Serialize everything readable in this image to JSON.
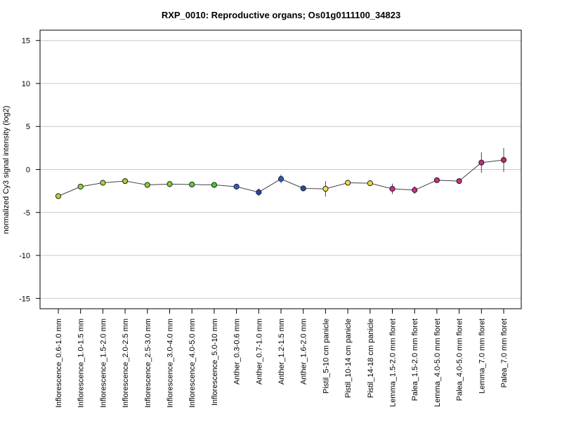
{
  "chart_data": {
    "type": "line",
    "title": "RXP_0010: Reproductive organs; Os01g0111100_34823",
    "xlabel": "",
    "ylabel": "normalized Cy3 signal intensity (log2)",
    "ylim": [
      -16.2,
      16.2
    ],
    "yticks": [
      -15,
      -10,
      -5,
      0,
      5,
      10,
      15
    ],
    "ytick_labels": [
      "-15",
      "-10",
      "-5",
      "0",
      "5",
      "10",
      "15"
    ],
    "grid": true,
    "categories": [
      "Inflorescence_0.6-1.0 mm",
      "Inflorescence_1.0-1.5 mm",
      "Inflorescence_1.5-2.0 mm",
      "Inflorescence_2.0-2.5 mm",
      "Inflorescence_2.5-3.0 mm",
      "Inflorescence_3.0-4.0 mm",
      "Inflorescence_4.0-5.0 mm",
      "Inflorescence_5.0-10 mm",
      "Anther_0.3-0.6 mm",
      "Anther_0.7-1.0 mm",
      "Anther_1.2-1.5 mm",
      "Anther_1.6-2.0 mm",
      "Pistil_5-10 cm panicle",
      "Pistil_10-14 cm panicle",
      "Pistil_14-18 cm panicle",
      "Lemma_1.5-2.0 mm floret",
      "Palea_1.5-2.0 mm floret",
      "Lemma_4.0-5.0 mm floret",
      "Palea_4.0-5.0 mm floret",
      "Lemma_7.0 mm floret",
      "Palea_7.0 mm floret"
    ],
    "values": [
      -3.1,
      -2.0,
      -1.55,
      -1.35,
      -1.8,
      -1.7,
      -1.75,
      -1.8,
      -2.0,
      -2.65,
      -1.1,
      -2.2,
      -2.25,
      -1.55,
      -1.6,
      -2.25,
      -2.4,
      -1.25,
      -1.35,
      0.8,
      1.1
    ],
    "error": [
      0.1,
      0.15,
      0.2,
      0.15,
      0.15,
      0.35,
      0.15,
      0.1,
      0.3,
      0.45,
      0.5,
      0.35,
      0.9,
      0.3,
      0.2,
      0.6,
      0.45,
      0.15,
      0.15,
      1.2,
      1.4
    ],
    "point_colors": [
      "#b5d334",
      "#92d43c",
      "#a2d436",
      "#a7cd3a",
      "#8fcf33",
      "#7fd032",
      "#5ed033",
      "#3bd131",
      "#2e5fcf",
      "#1d44b7",
      "#2558cf",
      "#2c49b8",
      "#f0e14a",
      "#ebdd3e",
      "#e5dc3a",
      "#d2288f",
      "#d02c8b",
      "#cf2a87",
      "#cb2c85",
      "#c7287c",
      "#c72675"
    ]
  }
}
